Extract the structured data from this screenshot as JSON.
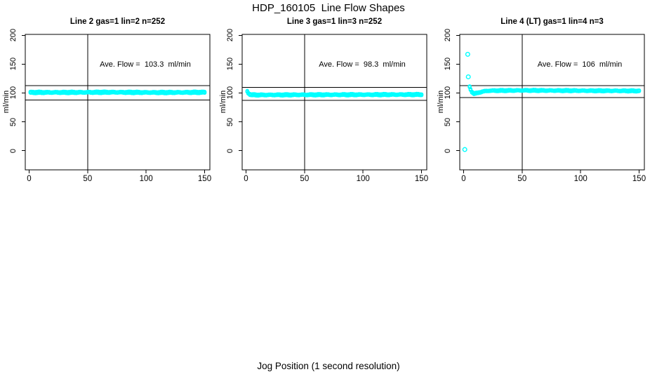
{
  "main_title": "HDP_160105  Line Flow Shapes",
  "x_axis_label": "Jog Position (1 second resolution)",
  "point_color": "#00ffff",
  "line_color": "#000000",
  "chart_data": {
    "type": "scatter",
    "title": "HDP_160105  Line Flow Shapes",
    "xlabel": "Jog Position (1 second resolution)",
    "ylabel": "ml/min",
    "x_ticks": [
      0,
      50,
      100,
      150
    ],
    "y_ticks": [
      0,
      50,
      100,
      150,
      200
    ],
    "xlim": [
      -3.3,
      154.5
    ],
    "ylim": [
      -33,
      202
    ],
    "grid": false,
    "vline_x": 50,
    "panels": [
      {
        "title": "Line 2 gas=1 lin=2 n=252",
        "ave_flow_label": "Ave. Flow =  103.3  ml/min",
        "ave_flow_value": 103.3,
        "n": 252,
        "hlines": [
          113,
          88
        ],
        "flow_profile": [
          [
            1,
            101.0
          ],
          [
            30,
            101.0
          ],
          [
            70,
            101.3
          ],
          [
            110,
            100.8
          ],
          [
            150,
            101.2
          ]
        ],
        "band_halfwidth": 2.2,
        "x_start": 1,
        "x_end": 150,
        "outliers": []
      },
      {
        "title": "Line 3 gas=1 lin=3 n=252",
        "ave_flow_label": "Ave. Flow =  98.3  ml/min",
        "ave_flow_value": 98.3,
        "n": 252,
        "hlines": [
          110,
          87
        ],
        "flow_profile": [
          [
            1,
            102.8
          ],
          [
            2,
            100.0
          ],
          [
            3,
            98.0
          ],
          [
            5,
            96.8
          ],
          [
            10,
            96.6
          ],
          [
            50,
            96.9
          ],
          [
            100,
            97.1
          ],
          [
            150,
            97.3
          ]
        ],
        "band_halfwidth": 1.9,
        "x_start": 1,
        "x_end": 150,
        "outliers": []
      },
      {
        "title": "Line 4 (LT) gas=1 lin=4 n=3",
        "ave_flow_label": "Ave. Flow =  106  ml/min",
        "ave_flow_value": 106,
        "n": 3,
        "hlines": [
          113,
          92
        ],
        "flow_profile": [
          [
            5,
            110.5
          ],
          [
            6,
            106.0
          ],
          [
            7,
            102.0
          ],
          [
            9,
            99.0
          ],
          [
            12,
            100.0
          ],
          [
            16,
            102.5
          ],
          [
            22,
            104.0
          ],
          [
            50,
            104.5
          ],
          [
            100,
            104.0
          ],
          [
            150,
            103.6
          ]
        ],
        "band_halfwidth": 1.7,
        "x_start": 5,
        "x_end": 150,
        "outliers": [
          [
            1,
            2
          ],
          [
            3.5,
            167
          ],
          [
            4,
            128
          ]
        ]
      }
    ]
  }
}
